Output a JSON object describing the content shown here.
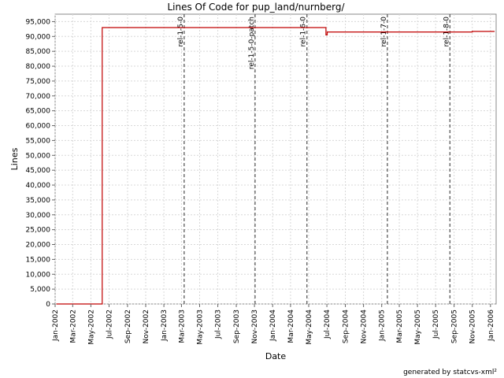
{
  "chart_data": {
    "type": "line",
    "title": "Lines Of Code for pup_land/nurnberg/",
    "xlabel": "Date",
    "ylabel": "Lines",
    "ylim": [
      0,
      97500
    ],
    "xlim": [
      "2002-01-01",
      "2006-01-20"
    ],
    "grid": true,
    "y_ticks": [
      0,
      5000,
      10000,
      15000,
      20000,
      25000,
      30000,
      35000,
      40000,
      45000,
      50000,
      55000,
      60000,
      65000,
      70000,
      75000,
      80000,
      85000,
      90000,
      95000
    ],
    "y_tick_labels": [
      "0",
      "5,000",
      "10,000",
      "15,000",
      "20,000",
      "25,000",
      "30,000",
      "35,000",
      "40,000",
      "45,000",
      "50,000",
      "55,000",
      "60,000",
      "65,000",
      "70,000",
      "75,000",
      "80,000",
      "85,000",
      "90,000",
      "95,000"
    ],
    "x_ticks": [
      "2002-01-01",
      "2002-03-01",
      "2002-05-01",
      "2002-07-01",
      "2002-09-01",
      "2002-11-01",
      "2003-01-01",
      "2003-03-01",
      "2003-05-01",
      "2003-07-01",
      "2003-09-01",
      "2003-11-01",
      "2004-01-01",
      "2004-03-01",
      "2004-05-01",
      "2004-07-01",
      "2004-09-01",
      "2004-11-01",
      "2005-01-01",
      "2005-03-01",
      "2005-05-01",
      "2005-07-01",
      "2005-09-01",
      "2005-11-01",
      "2006-01-01"
    ],
    "x_tick_labels": [
      "Jan-2002",
      "Mar-2002",
      "May-2002",
      "Jul-2002",
      "Sep-2002",
      "Nov-2002",
      "Jan-2003",
      "Mar-2003",
      "May-2003",
      "Jul-2003",
      "Sep-2003",
      "Nov-2003",
      "Jan-2004",
      "Mar-2004",
      "May-2004",
      "Jul-2004",
      "Sep-2004",
      "Nov-2004",
      "Jan-2005",
      "Mar-2005",
      "May-2005",
      "Jul-2005",
      "Sep-2005",
      "Nov-2005",
      "Jan-2006"
    ],
    "series": [
      {
        "color": "#c00000",
        "step": true,
        "points": [
          [
            "2002-01-05",
            0
          ],
          [
            "2002-06-08",
            0
          ],
          [
            "2002-06-08",
            93000
          ],
          [
            "2004-06-28",
            93000
          ],
          [
            "2004-06-28",
            90500
          ],
          [
            "2004-07-02",
            90500
          ],
          [
            "2004-07-02",
            91500
          ],
          [
            "2005-11-01",
            91500
          ],
          [
            "2005-11-01",
            91700
          ],
          [
            "2006-01-15",
            91700
          ]
        ]
      }
    ],
    "markers": [
      {
        "label": "rel-1-5-0",
        "date": "2003-03-10"
      },
      {
        "label": "rel-1-5-0-patch",
        "date": "2003-11-03"
      },
      {
        "label": "rel-1-6-0",
        "date": "2004-04-25"
      },
      {
        "label": "rel-1-7-0",
        "date": "2005-01-20"
      },
      {
        "label": "rel-1-8-0",
        "date": "2005-08-18"
      }
    ],
    "marker_color": "#666666"
  },
  "footer": "generated by statcvs-xml²"
}
